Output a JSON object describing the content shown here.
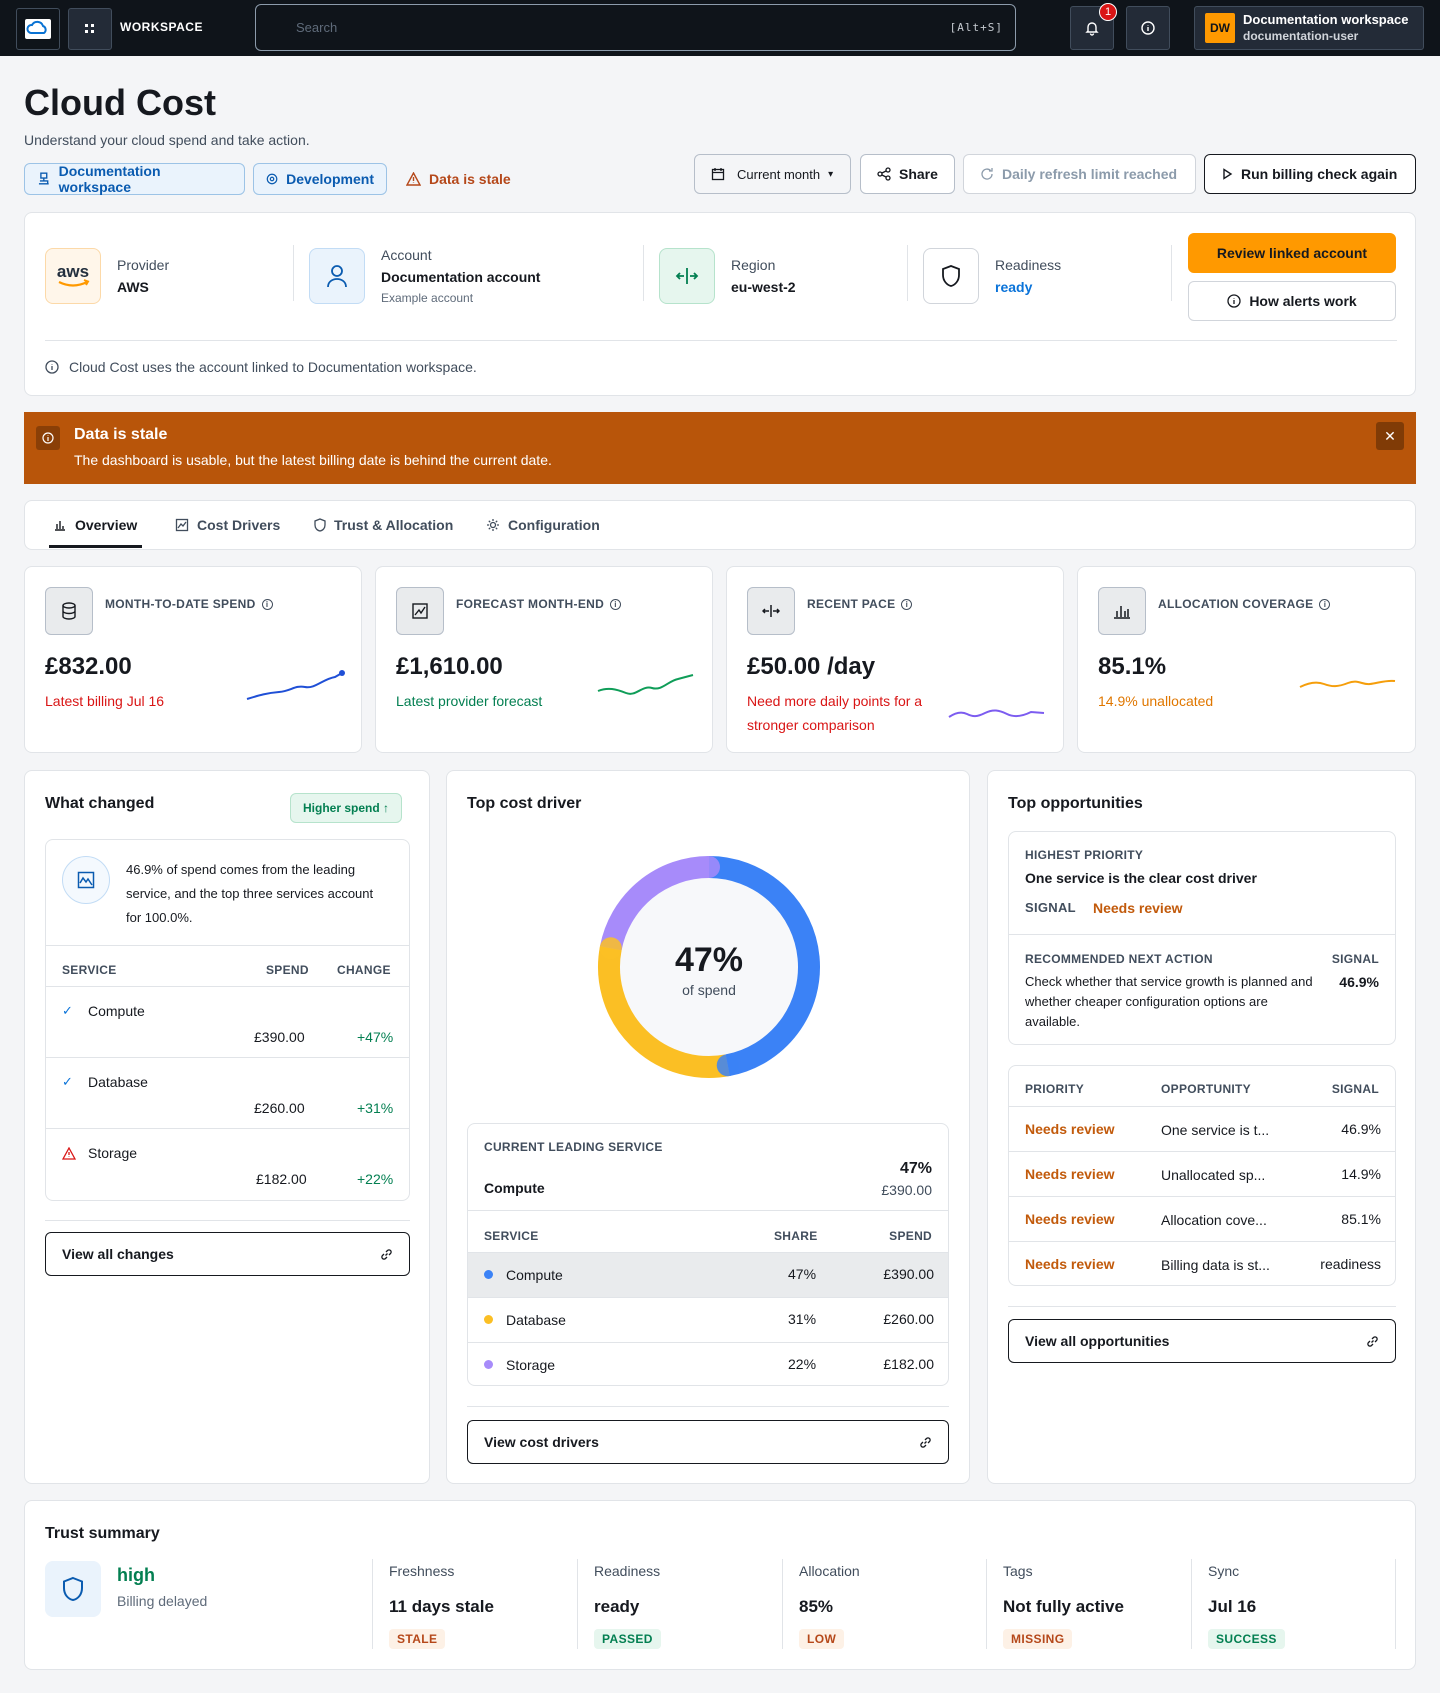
{
  "topbar": {
    "workspace_label": "WORKSPACE",
    "search_placeholder": "Search",
    "search_shortcut": "[Alt+S]",
    "notification_count": "1",
    "user_initials": "DW",
    "user_workspace": "Documentation workspace",
    "user_name": "documentation-user"
  },
  "header": {
    "title": "Cloud Cost",
    "subtitle": "Understand your cloud spend and take action.",
    "chip_workspace": "Documentation workspace",
    "chip_env": "Development",
    "stale_label": "Data is stale",
    "period_label": "Current month",
    "share_label": "Share",
    "refresh_label": "Daily refresh limit reached",
    "run_label": "Run billing check again"
  },
  "account": {
    "provider_label": "Provider",
    "provider_value": "AWS",
    "provider_logo": "aws",
    "account_label": "Account",
    "account_value": "Documentation account",
    "account_sub": "Example account",
    "region_label": "Region",
    "region_value": "eu-west-2",
    "readiness_label": "Readiness",
    "readiness_value": "ready",
    "review_button": "Review linked account",
    "alerts_button": "How alerts work",
    "note": "Cloud Cost uses the account linked to Documentation workspace."
  },
  "banner": {
    "title": "Data is stale",
    "message": "The dashboard is usable, but the latest billing date is behind the current date."
  },
  "tabs": [
    "Overview",
    "Cost Drivers",
    "Trust & Allocation",
    "Configuration"
  ],
  "kpis": [
    {
      "title": "MONTH-TO-DATE SPEND",
      "value": "£832.00",
      "sub": "Latest billing Jul 16",
      "color": "#d91515",
      "spark": "#1f4fd6"
    },
    {
      "title": "FORECAST MONTH-END",
      "value": "£1,610.00",
      "sub": "Latest provider forecast",
      "color": "#037f51",
      "spark": "#0f9d58"
    },
    {
      "title": "RECENT PACE",
      "value": "£50.00 /day",
      "sub": "Need more daily points for a stronger comparison",
      "color": "#d91515",
      "spark": "#7c5cf0"
    },
    {
      "title": "ALLOCATION COVERAGE",
      "value": "85.1%",
      "sub": "14.9% unallocated",
      "color": "#e07700",
      "spark": "#f59e0b"
    }
  ],
  "changed": {
    "title": "What changed",
    "badge": "Higher spend ↑",
    "insight": "46.9% of spend comes from the leading service, and the top three services account for 100.0%.",
    "headers": [
      "SERVICE",
      "SPEND",
      "CHANGE"
    ],
    "rows": [
      {
        "service": "Compute",
        "spend": "£390.00",
        "change": "+47%",
        "status": "check"
      },
      {
        "service": "Database",
        "spend": "£260.00",
        "change": "+31%",
        "status": "check"
      },
      {
        "service": "Storage",
        "spend": "£182.00",
        "change": "+22%",
        "status": "warning"
      }
    ],
    "button": "View all changes"
  },
  "driver": {
    "title": "Top cost driver",
    "center_value": "47%",
    "center_label": "of spend",
    "leading_label": "CURRENT LEADING SERVICE",
    "leading_service": "Compute",
    "leading_pct": "47%",
    "leading_spend": "£390.00",
    "headers": [
      "SERVICE",
      "SHARE",
      "SPEND"
    ],
    "rows": [
      {
        "service": "Compute",
        "share": "47%",
        "spend": "£390.00",
        "color": "#3b82f6"
      },
      {
        "service": "Database",
        "share": "31%",
        "spend": "£260.00",
        "color": "#fbbf24"
      },
      {
        "service": "Storage",
        "share": "22%",
        "spend": "£182.00",
        "color": "#a78bfa"
      }
    ],
    "shares": [
      47,
      31,
      22
    ],
    "button": "View cost drivers"
  },
  "opportunities": {
    "title": "Top opportunities",
    "highest_label": "HIGHEST PRIORITY",
    "highest_title": "One service is the clear cost driver",
    "signal_label": "SIGNAL",
    "signal_value": "Needs review",
    "next_label": "RECOMMENDED NEXT ACTION",
    "next_signal_label": "SIGNAL",
    "next_text": "Check whether that service growth is planned and whether cheaper configuration options are available.",
    "next_signal_value": "46.9%",
    "headers": [
      "PRIORITY",
      "OPPORTUNITY",
      "SIGNAL"
    ],
    "rows": [
      {
        "priority": "Needs review",
        "opportunity": "One service is t...",
        "signal": "46.9%"
      },
      {
        "priority": "Needs review",
        "opportunity": "Unallocated sp...",
        "signal": "14.9%"
      },
      {
        "priority": "Needs review",
        "opportunity": "Allocation cove...",
        "signal": "85.1%"
      },
      {
        "priority": "Needs review",
        "opportunity": "Billing data is st...",
        "signal": "readiness"
      }
    ],
    "button": "View all opportunities"
  },
  "trust": {
    "title": "Trust summary",
    "level": "high",
    "level_sub": "Billing delayed",
    "items": [
      {
        "label": "Freshness",
        "value": "11 days stale",
        "pill": "STALE",
        "pill_bg": "#fdf1e6",
        "pill_fg": "#b5481a"
      },
      {
        "label": "Readiness",
        "value": "ready",
        "pill": "PASSED",
        "pill_bg": "#e6f6ee",
        "pill_fg": "#037f51"
      },
      {
        "label": "Allocation",
        "value": "85%",
        "pill": "LOW",
        "pill_bg": "#fdf1e6",
        "pill_fg": "#b5481a"
      },
      {
        "label": "Tags",
        "value": "Not fully active",
        "pill": "MISSING",
        "pill_bg": "#fdf1e6",
        "pill_fg": "#b5481a"
      },
      {
        "label": "Sync",
        "value": "Jul 16",
        "pill": "SUCCESS",
        "pill_bg": "#e6f6ee",
        "pill_fg": "#037f51"
      }
    ]
  }
}
